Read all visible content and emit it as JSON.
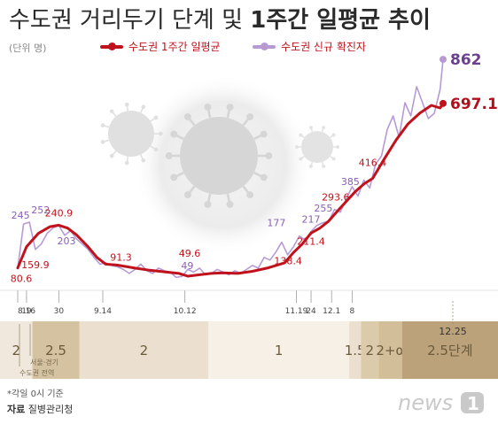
{
  "header": {
    "title_prefix": "수도권 거리두기 단계 및",
    "title_bold": "1주간 일평균 추이",
    "unit": "(단위 명)"
  },
  "legend": {
    "avg_label": "수도권 1주간 일평균",
    "new_label": "수도권 신규 확진자",
    "avg_color": "#c0121c",
    "new_color": "#b79ad4"
  },
  "chart_data": {
    "type": "line",
    "title": "수도권 거리두기 단계 및 1주간 일평균 추이",
    "ylabel": "(단위 명)",
    "x_ticks": [
      "8.16",
      "19",
      "30",
      "9.14",
      "10.12",
      "11.19",
      "24",
      "12.1",
      "8"
    ],
    "series": [
      {
        "name": "수도권 1주간 일평균",
        "color": "#c0121c",
        "points": [
          [
            0,
            80.6
          ],
          [
            3,
            159.9
          ],
          [
            7,
            210
          ],
          [
            11,
            235
          ],
          [
            14,
            240.9
          ],
          [
            17,
            230
          ],
          [
            20,
            205
          ],
          [
            24,
            160
          ],
          [
            27,
            120
          ],
          [
            30,
            95
          ],
          [
            34,
            91.3
          ],
          [
            40,
            80
          ],
          [
            45,
            72
          ],
          [
            50,
            66
          ],
          [
            55,
            60
          ],
          [
            58,
            49.6
          ],
          [
            62,
            55
          ],
          [
            66,
            60
          ],
          [
            70,
            62
          ],
          [
            75,
            60
          ],
          [
            80,
            68
          ],
          [
            85,
            80
          ],
          [
            91,
            100
          ],
          [
            94,
            138.4
          ],
          [
            97,
            170
          ],
          [
            100,
            211.4
          ],
          [
            103,
            230
          ],
          [
            106,
            256
          ],
          [
            109,
            293.6
          ],
          [
            112,
            330
          ],
          [
            115,
            366
          ],
          [
            118,
            395
          ],
          [
            121,
            416.4
          ],
          [
            125,
            490
          ],
          [
            129,
            560
          ],
          [
            133,
            620
          ],
          [
            137,
            660
          ],
          [
            141,
            690
          ],
          [
            144,
            680
          ],
          [
            145,
            697.1
          ]
        ]
      },
      {
        "name": "수도권 신규 확진자",
        "color": "#b79ad4",
        "points": [
          [
            0,
            80
          ],
          [
            2,
            245
          ],
          [
            4,
            252
          ],
          [
            6,
            150
          ],
          [
            8,
            170
          ],
          [
            10,
            210
          ],
          [
            12,
            230
          ],
          [
            14,
            240
          ],
          [
            16,
            203
          ],
          [
            18,
            220
          ],
          [
            20,
            190
          ],
          [
            22,
            170
          ],
          [
            24,
            150
          ],
          [
            26,
            120
          ],
          [
            28,
            95
          ],
          [
            30,
            100
          ],
          [
            32,
            90
          ],
          [
            34,
            85
          ],
          [
            36,
            75
          ],
          [
            38,
            60
          ],
          [
            40,
            75
          ],
          [
            42,
            95
          ],
          [
            44,
            70
          ],
          [
            46,
            60
          ],
          [
            48,
            80
          ],
          [
            50,
            70
          ],
          [
            52,
            65
          ],
          [
            54,
            45
          ],
          [
            56,
            49
          ],
          [
            58,
            75
          ],
          [
            60,
            65
          ],
          [
            62,
            80
          ],
          [
            64,
            55
          ],
          [
            66,
            60
          ],
          [
            68,
            75
          ],
          [
            70,
            65
          ],
          [
            72,
            55
          ],
          [
            74,
            70
          ],
          [
            76,
            60
          ],
          [
            78,
            75
          ],
          [
            80,
            90
          ],
          [
            82,
            80
          ],
          [
            84,
            120
          ],
          [
            86,
            110
          ],
          [
            88,
            140
          ],
          [
            90,
            177
          ],
          [
            92,
            130
          ],
          [
            94,
            160
          ],
          [
            96,
            200
          ],
          [
            98,
            185
          ],
          [
            100,
            217
          ],
          [
            102,
            240
          ],
          [
            104,
            250
          ],
          [
            106,
            255
          ],
          [
            108,
            300
          ],
          [
            110,
            290
          ],
          [
            112,
            340
          ],
          [
            114,
            385
          ],
          [
            116,
            350
          ],
          [
            118,
            410
          ],
          [
            120,
            380
          ],
          [
            122,
            470
          ],
          [
            124,
            500
          ],
          [
            126,
            600
          ],
          [
            128,
            650
          ],
          [
            130,
            570
          ],
          [
            132,
            700
          ],
          [
            134,
            650
          ],
          [
            136,
            760
          ],
          [
            138,
            700
          ],
          [
            140,
            640
          ],
          [
            142,
            660
          ],
          [
            144,
            750
          ],
          [
            145,
            862
          ]
        ]
      }
    ],
    "data_labels": [
      {
        "text": "245",
        "series": "new",
        "x": 2,
        "y": 245
      },
      {
        "text": "252",
        "series": "new",
        "x": 4,
        "y": 252
      },
      {
        "text": "80.6",
        "series": "avg",
        "x": 0,
        "y": 80.6
      },
      {
        "text": "159.9",
        "series": "avg",
        "x": 3,
        "y": 159.9
      },
      {
        "text": "240.9",
        "series": "avg",
        "x": 14,
        "y": 240.9
      },
      {
        "text": "203",
        "series": "new",
        "x": 16,
        "y": 203
      },
      {
        "text": "91.3",
        "series": "avg",
        "x": 34,
        "y": 91.3
      },
      {
        "text": "49.6",
        "series": "avg",
        "x": 58,
        "y": 49.6
      },
      {
        "text": "49",
        "series": "new",
        "x": 56,
        "y": 49
      },
      {
        "text": "177",
        "series": "new",
        "x": 90,
        "y": 177
      },
      {
        "text": "138.4",
        "series": "avg",
        "x": 94,
        "y": 138.4
      },
      {
        "text": "217",
        "series": "new",
        "x": 100,
        "y": 217
      },
      {
        "text": "211.4",
        "series": "avg",
        "x": 100,
        "y": 211.4
      },
      {
        "text": "293.6",
        "series": "avg",
        "x": 109,
        "y": 293.6
      },
      {
        "text": "255",
        "series": "new",
        "x": 106,
        "y": 255
      },
      {
        "text": "416.4",
        "series": "avg",
        "x": 121,
        "y": 416.4
      },
      {
        "text": "385",
        "series": "new",
        "x": 114,
        "y": 385
      },
      {
        "text": "862",
        "series": "new",
        "x": 145,
        "y": 862
      },
      {
        "text": "697.1",
        "series": "avg",
        "x": 145,
        "y": 697.1
      }
    ]
  },
  "stages": {
    "bands": [
      {
        "label": "2",
        "color": "#f0e8dc"
      },
      {
        "label": "2.5",
        "color": "#d4c2a0"
      },
      {
        "label": "2",
        "color": "#ebe0cf"
      },
      {
        "label": "1",
        "color": "#f6f0e6"
      },
      {
        "label": "1.5",
        "color": "#ebe0cf"
      },
      {
        "label": "2",
        "color": "#dccbaa"
      },
      {
        "label": "2+α",
        "color": "#d2bf99"
      },
      {
        "label": "2.5단계",
        "color": "#bba27a"
      }
    ],
    "note_line1": "서울·경기",
    "note_line2": "수도권 전역",
    "date_1225": "12.25"
  },
  "footer": {
    "note": "*각일 0시 기준",
    "source_label": "자료",
    "source_value": "질병관리청"
  },
  "brand": {
    "logo_text": "news",
    "logo_number": "1"
  }
}
